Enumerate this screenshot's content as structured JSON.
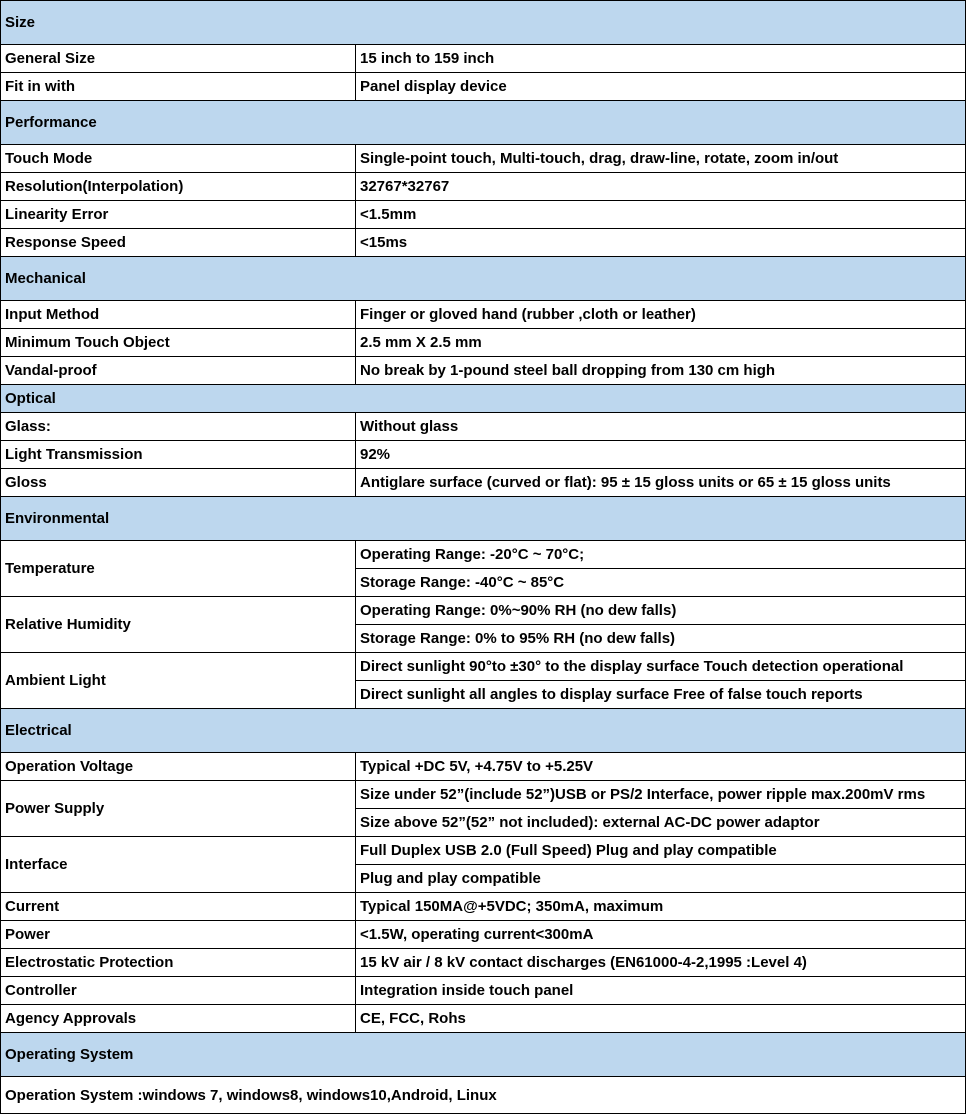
{
  "colors": {
    "section_header_bg": "#bdd7ee",
    "border": "#000000"
  },
  "sections": [
    {
      "header": "Size",
      "rows": [
        {
          "label": "General Size",
          "values": [
            "15 inch to 159 inch"
          ]
        },
        {
          "label": "Fit in with",
          "values": [
            "Panel display device"
          ]
        }
      ]
    },
    {
      "header": "Performance",
      "rows": [
        {
          "label": "Touch Mode",
          "values": [
            "Single-point touch, Multi-touch, drag, draw-line, rotate, zoom in/out"
          ]
        },
        {
          "label": "Resolution(Interpolation)",
          "values": [
            "32767*32767"
          ]
        },
        {
          "label": "Linearity Error",
          "values": [
            "<1.5mm"
          ]
        },
        {
          "label": "Response Speed",
          "values": [
            "<15ms"
          ]
        }
      ]
    },
    {
      "header": "Mechanical",
      "rows": [
        {
          "label": "Input Method",
          "values": [
            "Finger or gloved hand (rubber ,cloth or leather)"
          ]
        },
        {
          "label": "Minimum Touch Object",
          "values": [
            "2.5 mm X 2.5 mm"
          ]
        },
        {
          "label": "Vandal-proof",
          "values": [
            "No break by 1-pound steel ball dropping from 130 cm high"
          ]
        }
      ]
    },
    {
      "header": "Optical",
      "short": true,
      "rows": [
        {
          "label": "Glass:",
          "values": [
            "Without  glass"
          ]
        },
        {
          "label": "Light Transmission",
          "values": [
            "92%"
          ]
        },
        {
          "label": "Gloss",
          "values": [
            "Antiglare surface (curved or flat): 95  ±  15 gloss units or 65  ±  15 gloss units"
          ]
        }
      ]
    },
    {
      "header": "Environmental",
      "rows": [
        {
          "label": "Temperature",
          "values": [
            "Operating Range: -20°C ~ 70°C;",
            "Storage Range: -40°C ~ 85°C"
          ]
        },
        {
          "label": "Relative Humidity",
          "values": [
            "Operating Range: 0%~90% RH (no dew falls)",
            "Storage Range: 0% to 95% RH (no dew falls)"
          ]
        },
        {
          "label": "Ambient Light",
          "values": [
            "Direct sunlight 90°to ±30° to the display surface Touch detection operational",
            "Direct sunlight all angles to display surface Free of false touch reports"
          ]
        }
      ]
    },
    {
      "header": "Electrical",
      "rows": [
        {
          "label": "Operation Voltage",
          "values": [
            "Typical +DC 5V, +4.75V to +5.25V"
          ]
        },
        {
          "label": "Power Supply",
          "values": [
            "Size under 52”(include 52”)USB or PS/2 Interface, power ripple max.200mV rms",
            "Size above 52”(52” not included): external AC-DC power adaptor"
          ]
        },
        {
          "label": "Interface",
          "values": [
            "Full Duplex USB 2.0 (Full Speed) Plug and play compatible",
            "Plug and play compatible"
          ]
        },
        {
          "label": "Current",
          "values": [
            "Typical 150MA@+5VDC; 350mA, maximum"
          ]
        },
        {
          "label": "Power",
          "values": [
            "<1.5W, operating current<300mA"
          ]
        },
        {
          "label": "Electrostatic Protection",
          "values": [
            "15 kV air / 8 kV contact discharges (EN61000-4-2,1995 :Level 4)"
          ]
        },
        {
          "label": "Controller",
          "values": [
            "Integration inside touch panel"
          ]
        },
        {
          "label": "Agency Approvals",
          "values": [
            "CE, FCC, Rohs"
          ]
        }
      ]
    },
    {
      "header": "Operating System",
      "rows": [
        {
          "full": "Operation System :windows 7, windows8, windows10,Android, Linux"
        }
      ]
    }
  ]
}
